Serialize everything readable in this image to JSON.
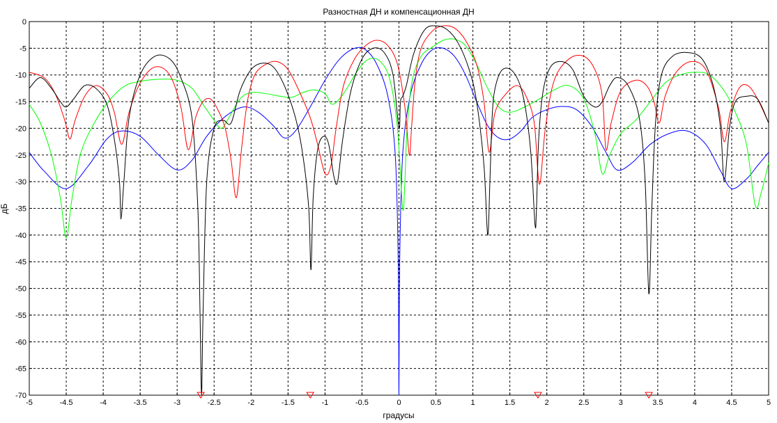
{
  "chart_data": {
    "type": "line",
    "title": "Разностная ДН и компенсационная ДН",
    "xlabel": "градусы",
    "ylabel": "дБ",
    "xlim": [
      -5,
      5
    ],
    "ylim": [
      -70,
      0
    ],
    "xticks": [
      -5,
      -4.5,
      -4,
      -3.5,
      -3,
      -2.5,
      -2,
      -1.5,
      -1,
      -0.5,
      0,
      0.5,
      1,
      1.5,
      2,
      2.5,
      3,
      3.5,
      4,
      4.5,
      5
    ],
    "xtick_labels": [
      "-5",
      "-4.5",
      "-4",
      "-3.5",
      "-3",
      "-2.5",
      "-2",
      "-1.5",
      "-1",
      "-0.5",
      "0",
      "0.5",
      "1",
      "1.5",
      "2",
      "2.5",
      "3",
      "3.5",
      "4",
      "4.5",
      "5"
    ],
    "yticks": [
      0,
      -5,
      -10,
      -15,
      -20,
      -25,
      -30,
      -35,
      -40,
      -45,
      -50,
      -55,
      -60,
      -65,
      -70
    ],
    "ytick_labels": [
      "0",
      "-5",
      "-10",
      "-15",
      "-20",
      "-25",
      "-30",
      "-35",
      "-40",
      "-45",
      "-50",
      "-55",
      "-60",
      "-65",
      "-70"
    ],
    "grid": true,
    "grid_style": "dashed",
    "markers": {
      "color": "#ff0000",
      "shape": "triangle-down",
      "x": [
        -2.68,
        -1.2,
        1.88,
        3.38
      ],
      "y": -70
    },
    "series": [
      {
        "color": "#0000ff",
        "x": [
          -5,
          -4.8,
          -4.5,
          -4.2,
          -3.95,
          -3.75,
          -3.5,
          -3.25,
          -3.0,
          -2.8,
          -2.6,
          -2.35,
          -2.1,
          -1.9,
          -1.7,
          -1.55,
          -1.4,
          -1.2,
          -1.0,
          -0.8,
          -0.6,
          -0.45,
          -0.3,
          -0.15,
          -0.05,
          -0.01,
          0,
          0.01,
          0.05,
          0.15,
          0.3,
          0.45,
          0.6,
          0.75,
          0.9,
          1.05,
          1.2,
          1.35,
          1.5,
          1.65,
          1.8,
          2.0,
          2.2,
          2.4,
          2.6,
          2.8,
          2.95,
          3.15,
          3.4,
          3.65,
          3.9,
          4.15,
          4.35,
          4.5,
          4.7,
          4.85,
          5
        ],
        "y": [
          -24.5,
          -28.0,
          -31.3,
          -27.0,
          -22.0,
          -20.5,
          -21.5,
          -25.0,
          -27.8,
          -26.0,
          -21.5,
          -17.8,
          -16.0,
          -17.0,
          -19.5,
          -21.8,
          -20.5,
          -16.0,
          -11.0,
          -7.0,
          -5.0,
          -5.3,
          -8.0,
          -14.0,
          -25.0,
          -45.0,
          -70,
          -45.0,
          -25.0,
          -14.0,
          -8.0,
          -5.3,
          -5.0,
          -6.5,
          -10.0,
          -15.0,
          -19.5,
          -21.8,
          -22.0,
          -20.5,
          -18.0,
          -16.5,
          -15.9,
          -16.5,
          -19.5,
          -24.5,
          -27.8,
          -26.5,
          -23.0,
          -21.0,
          -20.5,
          -23.0,
          -28.0,
          -31.3,
          -29.5,
          -27.0,
          -24.5
        ]
      },
      {
        "color": "#00ff00",
        "x": [
          -5,
          -4.85,
          -4.7,
          -4.58,
          -4.5,
          -4.42,
          -4.3,
          -4.1,
          -3.9,
          -3.7,
          -3.5,
          -3.25,
          -3.0,
          -2.8,
          -2.65,
          -2.5,
          -2.4,
          -2.3,
          -2.15,
          -2.0,
          -1.8,
          -1.6,
          -1.45,
          -1.3,
          -1.15,
          -1.0,
          -0.9,
          -0.75,
          -0.55,
          -0.4,
          -0.25,
          -0.12,
          -0.02,
          0.05,
          0.08,
          0.11,
          0.18,
          0.3,
          0.45,
          0.6,
          0.75,
          0.9,
          1.05,
          1.2,
          1.35,
          1.5,
          1.7,
          1.9,
          2.1,
          2.3,
          2.5,
          2.65,
          2.75,
          2.85,
          3.0,
          3.2,
          3.4,
          3.6,
          3.8,
          4.0,
          4.2,
          4.4,
          4.55,
          4.7,
          4.82,
          4.9,
          5
        ],
        "y": [
          -15.5,
          -19.0,
          -25.0,
          -33.0,
          -40.5,
          -33.0,
          -24.5,
          -18.5,
          -14.5,
          -12.0,
          -11.2,
          -10.8,
          -11.0,
          -12.5,
          -15.5,
          -18.5,
          -20.0,
          -18.0,
          -14.5,
          -13.3,
          -13.5,
          -14.0,
          -14.2,
          -13.3,
          -12.8,
          -13.5,
          -15.5,
          -13.5,
          -9.0,
          -7.0,
          -7.5,
          -11.0,
          -20.0,
          -35.0,
          -30.0,
          -20.0,
          -11.0,
          -6.5,
          -4.8,
          -3.5,
          -3.3,
          -4.5,
          -8.0,
          -12.5,
          -16.0,
          -17.0,
          -16.0,
          -14.5,
          -12.8,
          -12.0,
          -14.5,
          -21.0,
          -28.5,
          -25.0,
          -21.0,
          -18.5,
          -15.0,
          -11.5,
          -10.0,
          -9.5,
          -10.0,
          -13.0,
          -17.0,
          -23.0,
          -34.5,
          -32.0,
          -26.5
        ]
      },
      {
        "color": "#ff0000",
        "x": [
          -5,
          -4.8,
          -4.65,
          -4.52,
          -4.45,
          -4.38,
          -4.25,
          -4.1,
          -3.95,
          -3.85,
          -3.75,
          -3.65,
          -3.5,
          -3.3,
          -3.1,
          -2.95,
          -2.85,
          -2.75,
          -2.65,
          -2.55,
          -2.45,
          -2.35,
          -2.27,
          -2.2,
          -2.13,
          -2.05,
          -1.95,
          -1.8,
          -1.65,
          -1.5,
          -1.35,
          -1.2,
          -1.1,
          -1.0,
          -0.92,
          -0.85,
          -0.75,
          -0.6,
          -0.45,
          -0.3,
          -0.15,
          -0.02,
          0.08,
          0.14,
          0.17,
          0.22,
          0.3,
          0.45,
          0.6,
          0.75,
          0.9,
          1.05,
          1.15,
          1.22,
          1.3,
          1.45,
          1.6,
          1.72,
          1.83,
          1.9,
          1.98,
          2.1,
          2.3,
          2.5,
          2.65,
          2.75,
          2.8,
          2.87,
          3.0,
          3.2,
          3.35,
          3.45,
          3.52,
          3.6,
          3.75,
          3.95,
          4.15,
          4.32,
          4.4,
          4.48,
          4.6,
          4.72,
          4.85,
          5
        ],
        "y": [
          -9.5,
          -10.5,
          -13.5,
          -18.5,
          -22.0,
          -18.5,
          -14.0,
          -12.0,
          -13.5,
          -17.0,
          -23.0,
          -17.0,
          -11.5,
          -8.5,
          -10.0,
          -16.0,
          -24.0,
          -18.0,
          -15.0,
          -14.5,
          -16.5,
          -20.0,
          -26.0,
          -33.0,
          -24.0,
          -15.0,
          -10.0,
          -8.0,
          -7.5,
          -9.0,
          -13.0,
          -18.0,
          -23.0,
          -28.5,
          -27.0,
          -20.0,
          -12.0,
          -7.0,
          -4.5,
          -3.5,
          -4.5,
          -8.0,
          -16.0,
          -25.0,
          -20.0,
          -11.0,
          -5.0,
          -1.8,
          -0.8,
          -1.2,
          -3.5,
          -8.0,
          -15.0,
          -24.5,
          -17.0,
          -13.5,
          -12.0,
          -14.0,
          -19.0,
          -30.5,
          -20.0,
          -11.0,
          -7.0,
          -6.5,
          -9.0,
          -14.0,
          -24.0,
          -19.0,
          -13.0,
          -11.0,
          -12.0,
          -15.0,
          -19.0,
          -14.0,
          -9.5,
          -7.5,
          -9.0,
          -16.0,
          -22.5,
          -17.0,
          -12.5,
          -12.0,
          -14.5,
          -19.0
        ]
      },
      {
        "color": "#000000",
        "x": [
          -5,
          -4.85,
          -4.7,
          -4.58,
          -4.5,
          -4.4,
          -4.25,
          -4.1,
          -3.95,
          -3.85,
          -3.78,
          -3.76,
          -3.72,
          -3.65,
          -3.5,
          -3.3,
          -3.1,
          -2.95,
          -2.8,
          -2.72,
          -2.69,
          -2.67,
          -2.65,
          -2.6,
          -2.5,
          -2.38,
          -2.27,
          -2.15,
          -2.0,
          -1.85,
          -1.7,
          -1.55,
          -1.4,
          -1.3,
          -1.22,
          -1.19,
          -1.16,
          -1.1,
          -1.02,
          -0.95,
          -0.88,
          -0.83,
          -0.76,
          -0.65,
          -0.5,
          -0.35,
          -0.2,
          -0.08,
          0,
          0.02,
          0.05,
          0.1,
          0.2,
          0.35,
          0.5,
          0.65,
          0.8,
          0.95,
          1.05,
          1.15,
          1.2,
          1.23,
          1.26,
          1.3,
          1.4,
          1.55,
          1.68,
          1.78,
          1.84,
          1.86,
          1.89,
          1.95,
          2.05,
          2.2,
          2.35,
          2.5,
          2.65,
          2.75,
          2.85,
          2.95,
          3.1,
          3.25,
          3.33,
          3.38,
          3.42,
          3.47,
          3.55,
          3.7,
          3.9,
          4.1,
          4.25,
          4.35,
          4.4,
          4.47,
          4.55,
          4.7,
          4.85,
          5
        ],
        "y": [
          -12.5,
          -10.5,
          -12.5,
          -15.0,
          -16.0,
          -14.5,
          -12.0,
          -12.5,
          -15.5,
          -22.0,
          -30.0,
          -37.0,
          -30.0,
          -18.0,
          -10.0,
          -6.5,
          -7.0,
          -10.5,
          -18.0,
          -35.0,
          -55.0,
          -70,
          -55.0,
          -30.0,
          -20.0,
          -18.5,
          -19.0,
          -13.0,
          -9.0,
          -7.8,
          -8.5,
          -12.0,
          -18.0,
          -25.0,
          -35.0,
          -46.5,
          -33.0,
          -24.0,
          -21.5,
          -23.0,
          -29.0,
          -30.0,
          -22.0,
          -13.0,
          -7.0,
          -5.0,
          -5.8,
          -10.0,
          -20.0,
          -15.0,
          -14.0,
          -12.0,
          -6.0,
          -1.5,
          -0.8,
          -1.5,
          -4.0,
          -9.0,
          -15.0,
          -27.0,
          -40.0,
          -30.0,
          -18.0,
          -12.5,
          -9.0,
          -9.5,
          -14.0,
          -24.0,
          -38.0,
          -35.0,
          -22.0,
          -13.0,
          -8.5,
          -7.5,
          -9.0,
          -14.0,
          -16.0,
          -15.0,
          -12.0,
          -10.5,
          -12.0,
          -18.0,
          -30.0,
          -51.0,
          -35.0,
          -19.0,
          -10.0,
          -6.5,
          -5.8,
          -7.0,
          -12.0,
          -20.0,
          -30.0,
          -20.0,
          -15.0,
          -14.0,
          -14.5,
          -19.0
        ]
      }
    ]
  }
}
